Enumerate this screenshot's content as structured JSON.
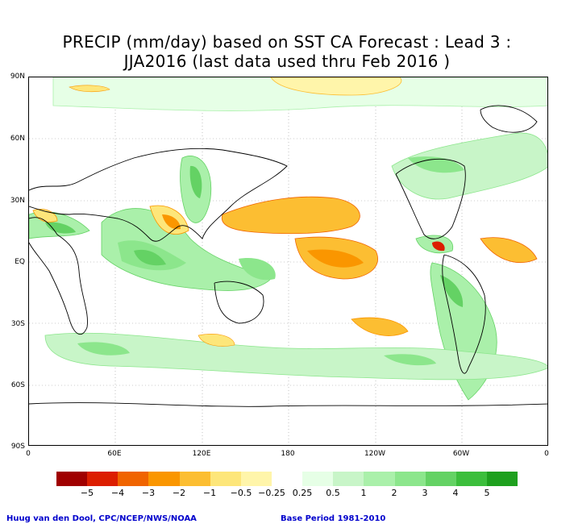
{
  "header": {
    "title_line1": "PRECIP (mm/day) based on SST CA Forecast : Lead 3 :",
    "title_line2": "JJA2016 (last data used thru Feb 2016 )"
  },
  "axes": {
    "lat_labels": [
      "90N",
      "60N",
      "30N",
      "EQ",
      "30S",
      "60S",
      "90S"
    ],
    "lon_labels": [
      "0",
      "60E",
      "120E",
      "180",
      "120W",
      "60W",
      "0"
    ]
  },
  "legend": {
    "colors": [
      "#a00000",
      "#dc1e00",
      "#f06400",
      "#fa9600",
      "#fcbe32",
      "#fde67a",
      "#fff5aa",
      "#ffffff",
      "#e6ffe6",
      "#c8f5c8",
      "#aaf0aa",
      "#8ce68c",
      "#64d264",
      "#3cbe3c",
      "#1ea01e"
    ],
    "labels": [
      "−5",
      "−4",
      "−3",
      "−2",
      "−1",
      "−0.5",
      "−0.25",
      "0.25",
      "0.5",
      "1",
      "2",
      "3",
      "4",
      "5"
    ]
  },
  "footer": {
    "credit": "Huug van den Dool, CPC/NCEP/NWS/NOAA",
    "base_period": "Base Period 1981-2010"
  }
}
